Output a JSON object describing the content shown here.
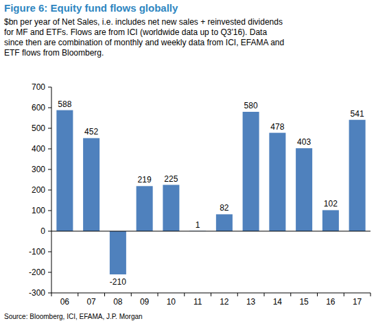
{
  "chart_data": {
    "type": "bar",
    "title": "Figure 6: Equity fund flows globally",
    "subtitle": [
      "$bn per year of Net Sales, i.e. includes net new sales + reinvested dividends",
      "for MF and ETFs. Flows are from ICI (worldwide data up to Q3'16). Data",
      "since then are combination of monthly and weekly data from ICI, EFAMA and",
      "ETF flows from Bloomberg."
    ],
    "source": "Source: Bloomberg, ICI, EFAMA, J.P. Morgan",
    "categories": [
      "06",
      "07",
      "08",
      "09",
      "10",
      "11",
      "12",
      "13",
      "14",
      "15",
      "16",
      "17"
    ],
    "values": [
      588,
      452,
      -210,
      219,
      225,
      1,
      82,
      580,
      478,
      403,
      102,
      541
    ],
    "color": "#4f81bd",
    "ylim": [
      -300,
      700
    ],
    "yticks": [
      -300,
      -200,
      -100,
      0,
      100,
      200,
      300,
      400,
      500,
      600,
      700
    ],
    "grid": false,
    "data_labels": true
  }
}
